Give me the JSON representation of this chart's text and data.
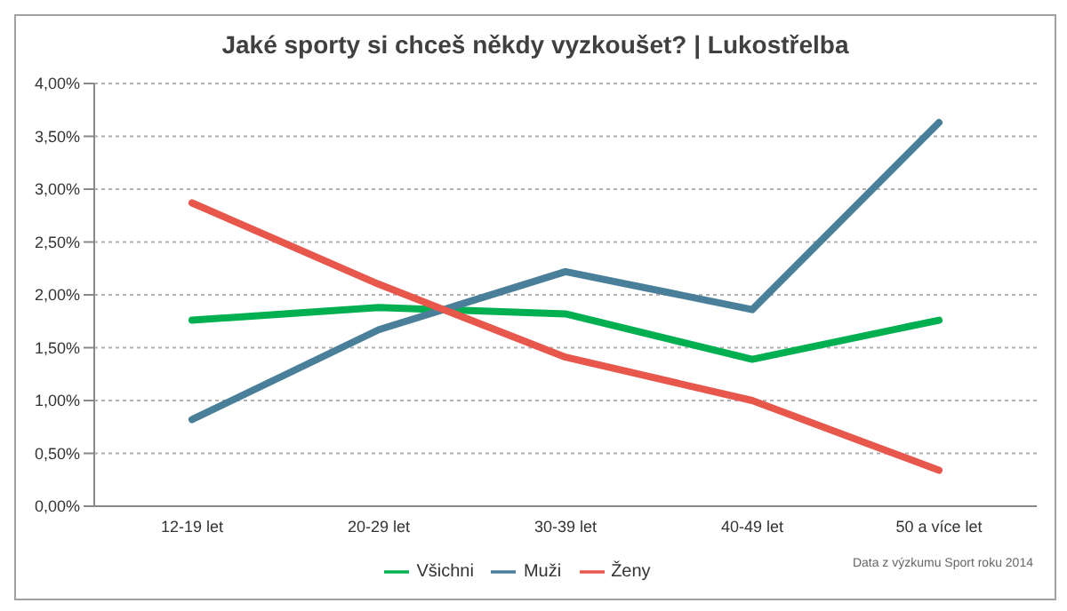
{
  "chart_data": {
    "type": "line",
    "title": "Jaké sporty si chceš někdy vyzkoušet? | Lukostřelba",
    "categories": [
      "12-19 let",
      "20-29 let",
      "30-39 let",
      "40-49 let",
      "50 a více let"
    ],
    "series": [
      {
        "name": "Všichni",
        "color": "#00b050",
        "values": [
          1.76,
          1.88,
          1.82,
          1.39,
          1.76
        ]
      },
      {
        "name": "Muži",
        "color": "#4a7f9a",
        "values": [
          0.82,
          1.67,
          2.22,
          1.86,
          3.63
        ]
      },
      {
        "name": "Ženy",
        "color": "#e8574c",
        "values": [
          2.87,
          2.1,
          1.41,
          1.0,
          0.34
        ]
      }
    ],
    "ylim": [
      0,
      4
    ],
    "yticks": [
      {
        "value": 0,
        "label": "0,00%"
      },
      {
        "value": 0.5,
        "label": "0,50%"
      },
      {
        "value": 1,
        "label": "1,00%"
      },
      {
        "value": 1.5,
        "label": "1,50%"
      },
      {
        "value": 2,
        "label": "2,00%"
      },
      {
        "value": 2.5,
        "label": "2,50%"
      },
      {
        "value": 3,
        "label": "3,00%"
      },
      {
        "value": 3.5,
        "label": "3,50%"
      },
      {
        "value": 4,
        "label": "4,00%"
      }
    ],
    "grid": "y",
    "legend": "bottom",
    "marker": "none",
    "line_style": "solid",
    "annotations": [
      "Data z výzkumu Sport roku 2014"
    ]
  }
}
